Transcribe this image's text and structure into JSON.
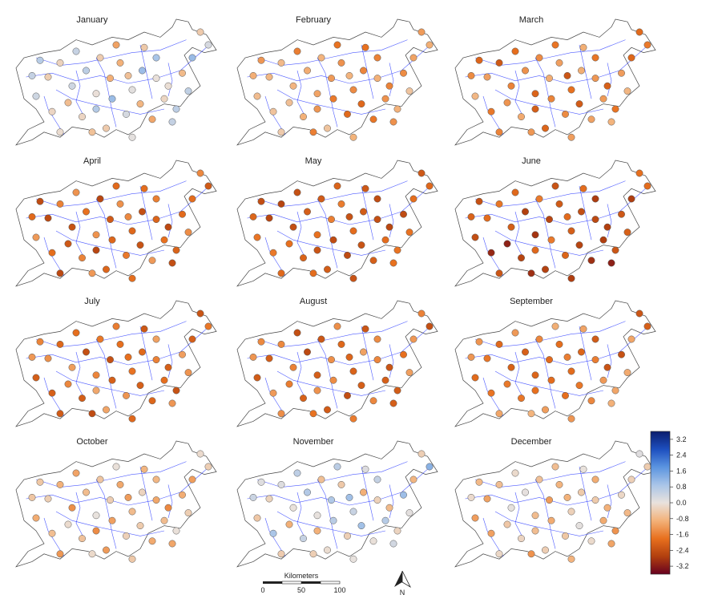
{
  "months": [
    "January",
    "February",
    "March",
    "April",
    "May",
    "June",
    "July",
    "August",
    "September",
    "October",
    "November",
    "December"
  ],
  "colorbar": {
    "tick_labels": [
      "3.2",
      "2.4",
      "1.6",
      "0.8",
      "0.0",
      "-0.8",
      "-1.6",
      "-2.4",
      "-3.2"
    ],
    "ticks": [
      3.2,
      2.4,
      1.6,
      0.8,
      0.0,
      -0.8,
      -1.6,
      -2.4,
      -3.2
    ],
    "range": [
      -3.6,
      3.6
    ],
    "colormap": [
      "#67001f",
      "#b2400f",
      "#e8701e",
      "#f3b27a",
      "#e9e2dd",
      "#a9c5e8",
      "#5b94e0",
      "#1d4fbf",
      "#0b1d6d"
    ]
  },
  "scale_bar": {
    "title": "Kilometers",
    "labels": [
      "0",
      "50",
      "100"
    ]
  },
  "north_arrow": {
    "label": "N"
  },
  "colors": {
    "river": "#2b3cff",
    "border": "#444444",
    "background": "#ffffff"
  },
  "month_means": [
    0.0,
    -1.2,
    -1.5,
    -1.9,
    -2.1,
    -2.4,
    -1.8,
    -1.8,
    -1.6,
    -0.7,
    0.1,
    -0.6
  ],
  "stations": [
    [
      0.16,
      0.45
    ],
    [
      0.22,
      0.34
    ],
    [
      0.28,
      0.52
    ],
    [
      0.35,
      0.4
    ],
    [
      0.4,
      0.58
    ],
    [
      0.47,
      0.46
    ],
    [
      0.52,
      0.34
    ],
    [
      0.58,
      0.55
    ],
    [
      0.63,
      0.4
    ],
    [
      0.7,
      0.3
    ],
    [
      0.76,
      0.52
    ],
    [
      0.83,
      0.42
    ],
    [
      0.92,
      0.1
    ],
    [
      0.96,
      0.2
    ],
    [
      0.1,
      0.6
    ],
    [
      0.18,
      0.72
    ],
    [
      0.26,
      0.65
    ],
    [
      0.33,
      0.76
    ],
    [
      0.4,
      0.7
    ],
    [
      0.48,
      0.62
    ],
    [
      0.55,
      0.74
    ],
    [
      0.62,
      0.66
    ],
    [
      0.68,
      0.78
    ],
    [
      0.74,
      0.62
    ],
    [
      0.8,
      0.7
    ],
    [
      0.86,
      0.56
    ],
    [
      0.22,
      0.88
    ],
    [
      0.45,
      0.85
    ],
    [
      0.58,
      0.92
    ],
    [
      0.12,
      0.32
    ],
    [
      0.3,
      0.25
    ],
    [
      0.64,
      0.22
    ],
    [
      0.5,
      0.2
    ],
    [
      0.38,
      0.88
    ],
    [
      0.78,
      0.8
    ],
    [
      0.88,
      0.3
    ],
    [
      0.08,
      0.44
    ],
    [
      0.42,
      0.3
    ],
    [
      0.56,
      0.44
    ],
    [
      0.7,
      0.46
    ]
  ]
}
